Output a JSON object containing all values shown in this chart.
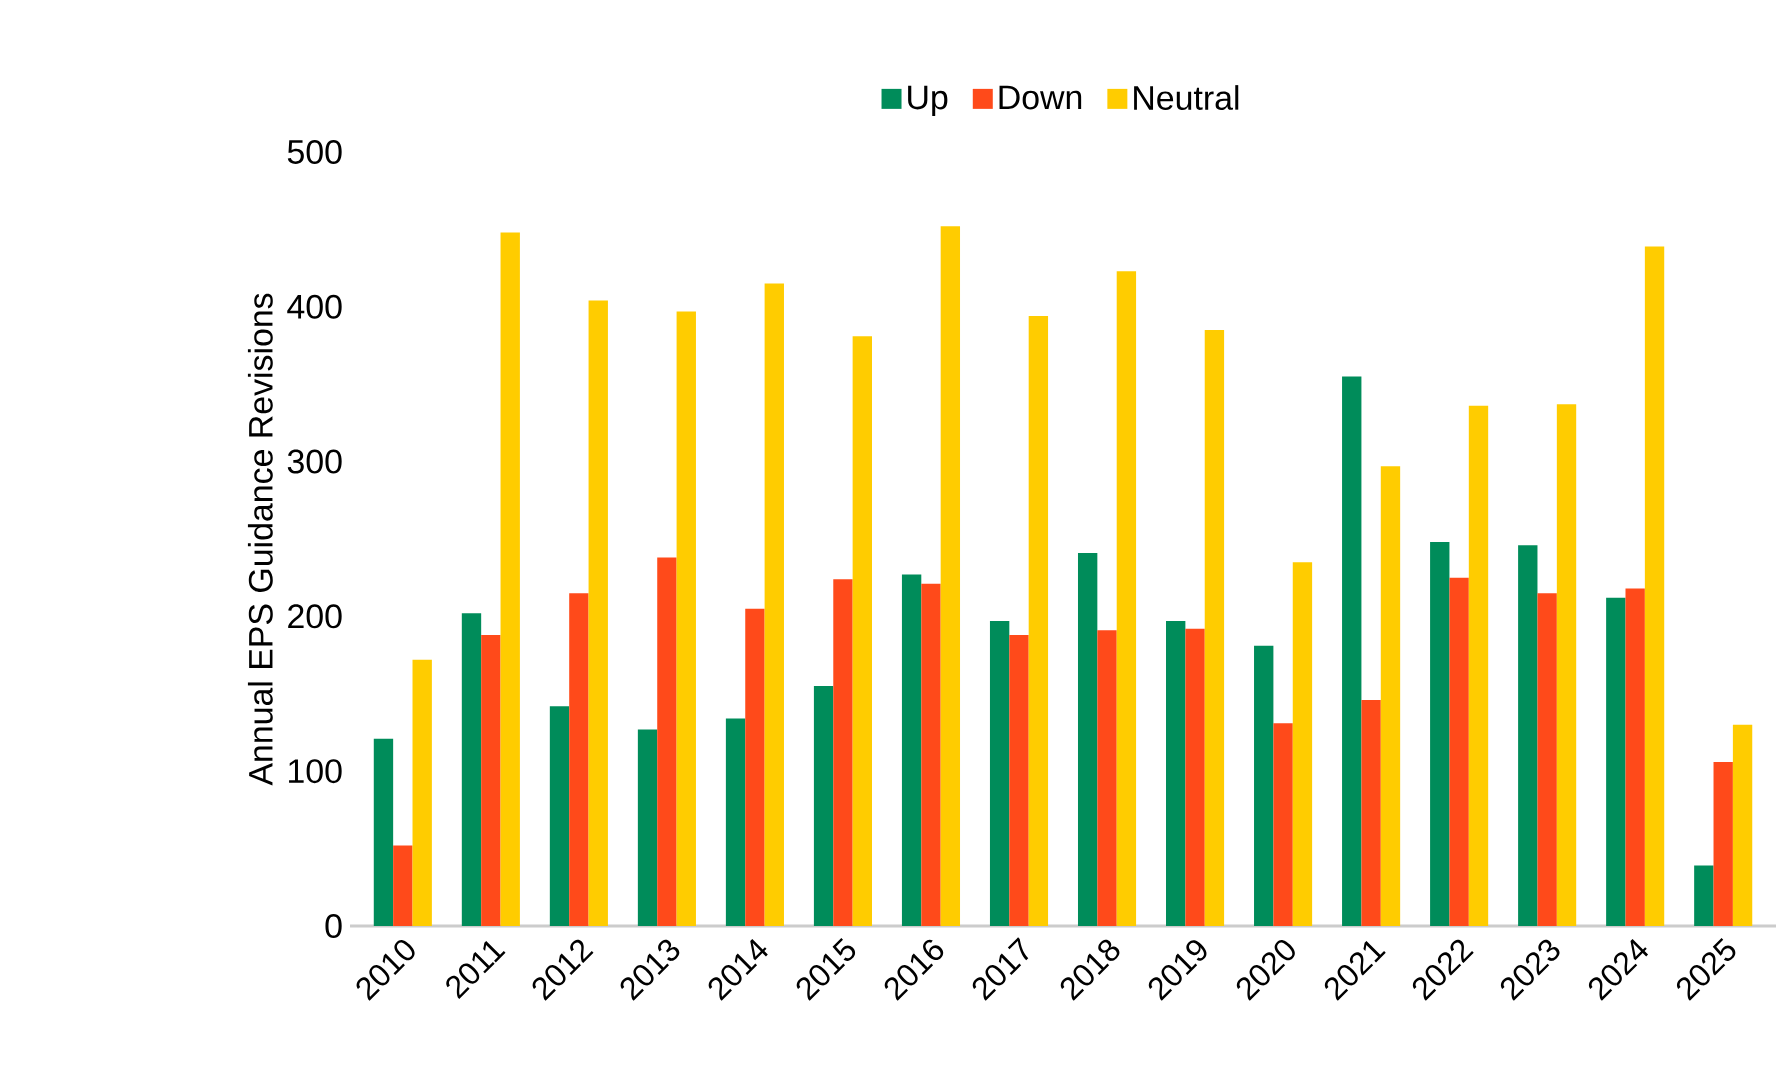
{
  "chart_data": {
    "type": "bar",
    "ylabel": "Annual EPS Guidance Revisions",
    "categories": [
      "2010",
      "2011",
      "2012",
      "2013",
      "2014",
      "2015",
      "2016",
      "2017",
      "2018",
      "2019",
      "2020",
      "2021",
      "2022",
      "2023",
      "2024",
      "2025"
    ],
    "series": [
      {
        "name": "Up",
        "color": "#008c5a",
        "values": [
          121,
          202,
          142,
          127,
          134,
          155,
          227,
          197,
          241,
          197,
          181,
          355,
          248,
          246,
          212,
          39
        ]
      },
      {
        "name": "Down",
        "color": "#ff4a1a",
        "values": [
          52,
          188,
          215,
          238,
          205,
          224,
          221,
          188,
          191,
          192,
          131,
          146,
          225,
          215,
          218,
          106
        ]
      },
      {
        "name": "Neutral",
        "color": "#ffcc00",
        "values": [
          172,
          448,
          404,
          397,
          415,
          381,
          452,
          394,
          423,
          385,
          235,
          297,
          336,
          337,
          439,
          130
        ]
      }
    ],
    "ylim": [
      0,
      500
    ],
    "yticks": [
      0,
      100,
      200,
      300,
      400,
      500
    ],
    "grid": false,
    "legend": "top"
  }
}
